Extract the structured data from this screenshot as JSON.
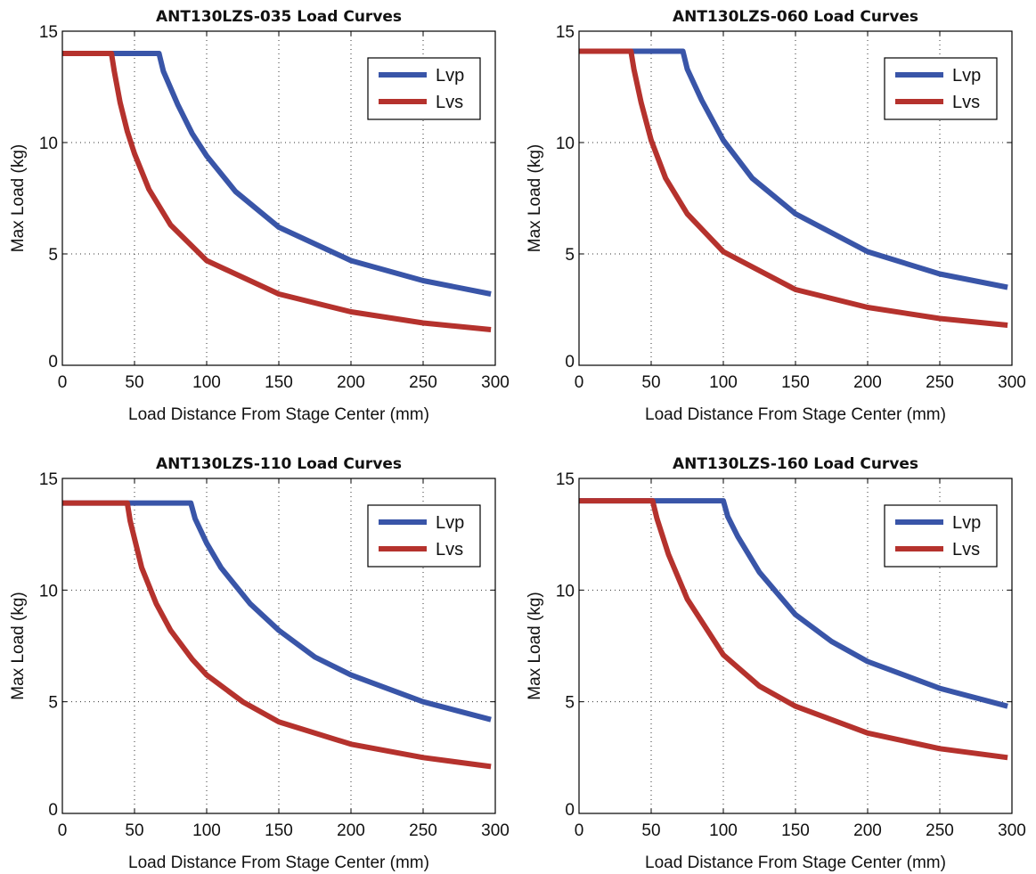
{
  "chart_data": [
    {
      "type": "line",
      "title": "ANT130LZS-035 Load Curves",
      "xlabel": "Load Distance From Stage Center (mm)",
      "ylabel": "Max Load (kg)",
      "xlim": [
        0,
        300
      ],
      "ylim": [
        0,
        15
      ],
      "xticks": [
        "0",
        "50",
        "100",
        "150",
        "200",
        "250",
        "300"
      ],
      "yticks": [
        "0",
        "5",
        "10",
        "15"
      ],
      "grid": true,
      "legend_position": "top-right",
      "series": [
        {
          "name": "Lvp",
          "color": "#3955a8",
          "x": [
            0,
            67,
            70,
            80,
            90,
            100,
            120,
            150,
            200,
            250,
            297
          ],
          "y": [
            14,
            14,
            13.2,
            11.7,
            10.4,
            9.4,
            7.8,
            6.2,
            4.7,
            3.8,
            3.2
          ]
        },
        {
          "name": "Lvs",
          "color": "#b5322d",
          "x": [
            0,
            34,
            36,
            40,
            45,
            50,
            60,
            75,
            100,
            150,
            200,
            250,
            297
          ],
          "y": [
            14,
            14,
            13.2,
            11.8,
            10.5,
            9.5,
            7.9,
            6.3,
            4.7,
            3.2,
            2.4,
            1.9,
            1.6
          ]
        }
      ]
    },
    {
      "type": "line",
      "title": "ANT130LZS-060 Load Curves",
      "xlabel": "Load Distance From Stage Center (mm)",
      "ylabel": "Max Load (kg)",
      "xlim": [
        0,
        300
      ],
      "ylim": [
        0,
        15
      ],
      "xticks": [
        "0",
        "50",
        "100",
        "150",
        "200",
        "250",
        "300"
      ],
      "yticks": [
        "0",
        "5",
        "10",
        "15"
      ],
      "grid": true,
      "legend_position": "top-right",
      "series": [
        {
          "name": "Lvp",
          "color": "#3955a8",
          "x": [
            0,
            72,
            75,
            85,
            100,
            120,
            150,
            200,
            250,
            297
          ],
          "y": [
            14.1,
            14.1,
            13.3,
            11.9,
            10.1,
            8.4,
            6.8,
            5.1,
            4.1,
            3.5
          ]
        },
        {
          "name": "Lvs",
          "color": "#b5322d",
          "x": [
            0,
            36,
            38,
            43,
            50,
            60,
            75,
            100,
            150,
            200,
            250,
            297
          ],
          "y": [
            14.1,
            14.1,
            13.3,
            11.8,
            10.1,
            8.4,
            6.8,
            5.1,
            3.4,
            2.6,
            2.1,
            1.8
          ]
        }
      ]
    },
    {
      "type": "line",
      "title": "ANT130LZS-110 Load Curves",
      "xlabel": "Load Distance From Stage Center (mm)",
      "ylabel": "Max Load (kg)",
      "xlim": [
        0,
        300
      ],
      "ylim": [
        0,
        15
      ],
      "xticks": [
        "0",
        "50",
        "100",
        "150",
        "200",
        "250",
        "300"
      ],
      "yticks": [
        "0",
        "5",
        "10",
        "15"
      ],
      "grid": true,
      "legend_position": "top-right",
      "series": [
        {
          "name": "Lvp",
          "color": "#3955a8",
          "x": [
            0,
            89,
            92,
            100,
            110,
            130,
            150,
            175,
            200,
            250,
            297
          ],
          "y": [
            13.9,
            13.9,
            13.2,
            12.1,
            11.0,
            9.4,
            8.2,
            7.0,
            6.2,
            5.0,
            4.2
          ]
        },
        {
          "name": "Lvs",
          "color": "#b5322d",
          "x": [
            0,
            45,
            47,
            55,
            65,
            75,
            90,
            100,
            125,
            150,
            200,
            250,
            297
          ],
          "y": [
            13.9,
            13.9,
            13.1,
            11.0,
            9.4,
            8.2,
            6.9,
            6.2,
            5.0,
            4.1,
            3.1,
            2.5,
            2.1
          ]
        }
      ]
    },
    {
      "type": "line",
      "title": "ANT130LZS-160 Load Curves",
      "xlabel": "Load Distance From Stage Center (mm)",
      "ylabel": "Max Load (kg)",
      "xlim": [
        0,
        300
      ],
      "ylim": [
        0,
        15
      ],
      "xticks": [
        "0",
        "50",
        "100",
        "150",
        "200",
        "250",
        "300"
      ],
      "yticks": [
        "0",
        "5",
        "10",
        "15"
      ],
      "grid": true,
      "legend_position": "top-right",
      "series": [
        {
          "name": "Lvp",
          "color": "#3955a8",
          "x": [
            0,
            100,
            103,
            110,
            125,
            150,
            175,
            200,
            250,
            297
          ],
          "y": [
            14,
            14,
            13.3,
            12.4,
            10.8,
            8.9,
            7.7,
            6.8,
            5.6,
            4.8
          ]
        },
        {
          "name": "Lvs",
          "color": "#b5322d",
          "x": [
            0,
            51,
            54,
            62,
            75,
            100,
            125,
            150,
            200,
            250,
            297
          ],
          "y": [
            14,
            14,
            13.2,
            11.6,
            9.6,
            7.1,
            5.7,
            4.8,
            3.6,
            2.9,
            2.5
          ]
        }
      ]
    }
  ]
}
